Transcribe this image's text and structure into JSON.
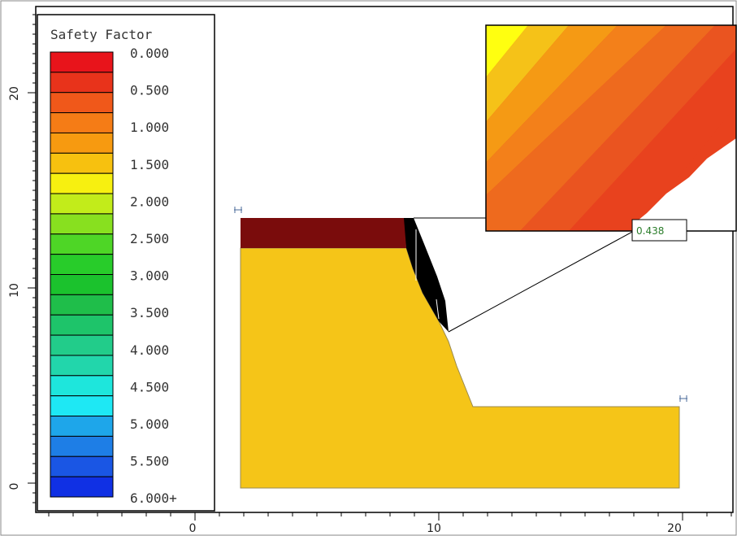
{
  "legend": {
    "title": "Safety Factor",
    "labels": [
      "0.000",
      "0.500",
      "1.000",
      "1.500",
      "2.000",
      "2.500",
      "3.000",
      "3.500",
      "4.000",
      "4.500",
      "5.000",
      "5.500",
      "6.000+"
    ],
    "colors": [
      "#e8141b",
      "#e8331b",
      "#f0581a",
      "#f57c16",
      "#f79a10",
      "#f7c10f",
      "#f7f010",
      "#c2ec1a",
      "#88e01f",
      "#4ed626",
      "#28cc2a",
      "#1bc22d",
      "#1fbe4a",
      "#1ec46a",
      "#22cc8a",
      "#22d6ab",
      "#1ee6dc",
      "#1ee8f4",
      "#1ea6ea",
      "#1e7ee6",
      "#1a56e4",
      "#1030e4"
    ]
  },
  "axes": {
    "x_ticks": [
      "0",
      "10",
      "20"
    ],
    "y_ticks": [
      "0",
      "10",
      "20"
    ]
  },
  "critical_surface": {
    "safety_factor": "0.438"
  },
  "materials": {
    "top_layer_color": "#7a0c0c",
    "soil_color": "#f5c518",
    "slip_mass_color": "#000000"
  },
  "inset": {
    "band_colors": [
      "#ffff10",
      "#f5c218",
      "#f59a14",
      "#f3801a",
      "#ee6a1e",
      "#ea5420",
      "#e8421e",
      "#f04a1e"
    ]
  }
}
